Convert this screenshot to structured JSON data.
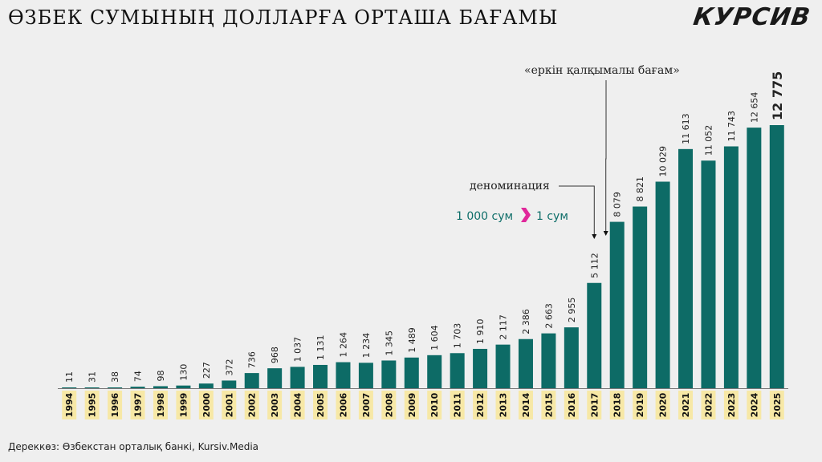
{
  "title": "ӨЗБЕК СУМЫНЫҢ ДОЛЛАРҒА ОРТАША БАҒАМЫ",
  "brand": "КУРСИВ",
  "source": "Дереккөз: Өзбекстан орталық банкі, Kursiv.Media",
  "annotations": {
    "free_float": "«еркін қалқымалы бағам»",
    "denomination": "деноминация",
    "denom_from": "1 000 сум",
    "denom_to": "1 сум"
  },
  "colors": {
    "bar": "#0d6b66",
    "year_bg": "#f7e8a6",
    "arrow": "#e0279a",
    "background": "#efefef"
  },
  "chart_data": {
    "type": "bar",
    "categories": [
      "1994",
      "1995",
      "1996",
      "1997",
      "1998",
      "1999",
      "2000",
      "2001",
      "2002",
      "2003",
      "2004",
      "2005",
      "2006",
      "2007",
      "2008",
      "2009",
      "2010",
      "2011",
      "2012",
      "2013",
      "2014",
      "2015",
      "2016",
      "2017",
      "2018",
      "2019",
      "2020",
      "2021",
      "2022",
      "2023",
      "2024",
      "2025"
    ],
    "values": [
      11,
      31,
      38,
      74,
      98,
      130,
      227,
      372,
      736,
      968,
      1037,
      1131,
      1264,
      1234,
      1345,
      1489,
      1604,
      1703,
      1910,
      2117,
      2386,
      2663,
      2955,
      5112,
      8079,
      8821,
      10029,
      11613,
      11052,
      11743,
      12654,
      12775
    ],
    "value_labels": [
      "11",
      "31",
      "38",
      "74",
      "98",
      "130",
      "227",
      "372",
      "736",
      "968",
      "1 037",
      "1 131",
      "1 264",
      "1 234",
      "1 345",
      "1 489",
      "1 604",
      "1 703",
      "1 910",
      "2 117",
      "2 386",
      "2 663",
      "2 955",
      "5 112",
      "8 079",
      "8 821",
      "10 029",
      "11 613",
      "11 052",
      "11 743",
      "12 654",
      "12 775"
    ],
    "title": "ӨЗБЕК СУМЫНЫҢ ДОЛЛАРҒА ОРТАША БАҒАМЫ",
    "xlabel": "",
    "ylabel": "",
    "ylim": [
      0,
      12775
    ],
    "grid": false,
    "legend": "none"
  }
}
